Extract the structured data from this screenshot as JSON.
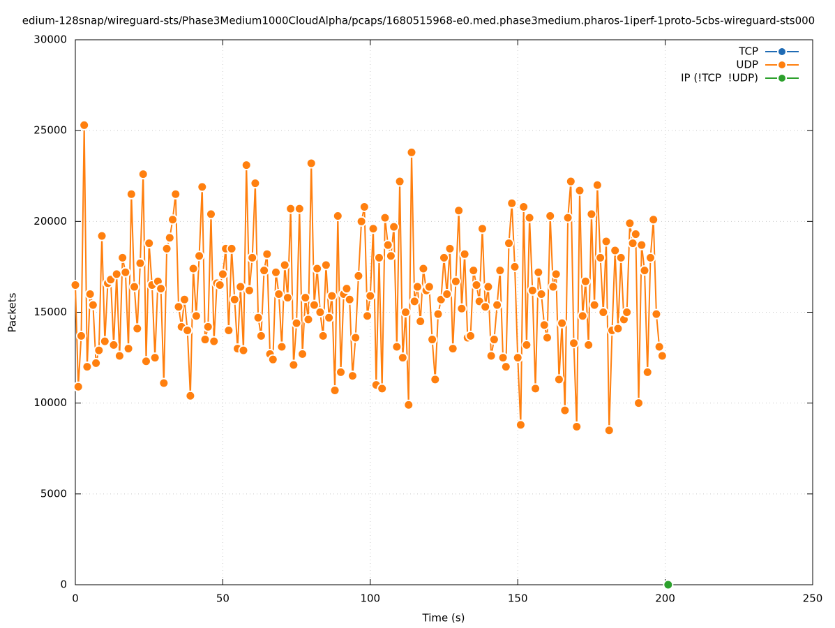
{
  "chart_data": {
    "type": "line",
    "title": "edium-128snap/wireguard-sts/Phase3Medium1000CloudAlpha/pcaps/1680515968-e0.med.phase3medium.pharos-1iperf-1proto-5cbs-wireguard-sts000",
    "x_label": "Time (s)",
    "y_label": "Packets",
    "xlim": [
      0,
      250
    ],
    "xticks": [
      0,
      50,
      100,
      150,
      200,
      250
    ],
    "ylim": [
      0,
      30000
    ],
    "yticks": [
      0,
      5000,
      10000,
      15000,
      20000,
      25000,
      30000
    ],
    "grid": true,
    "legend": "top-right",
    "series": [
      {
        "name": "TCP",
        "color": "#1f6bb4",
        "x": [],
        "values": []
      },
      {
        "name": "UDP",
        "color": "#ff7f0e",
        "x": [
          0,
          1,
          2,
          3,
          4,
          5,
          6,
          7,
          8,
          9,
          10,
          11,
          12,
          13,
          14,
          15,
          16,
          17,
          18,
          19,
          20,
          21,
          22,
          23,
          24,
          25,
          26,
          27,
          28,
          29,
          30,
          31,
          32,
          33,
          34,
          35,
          36,
          37,
          38,
          39,
          40,
          41,
          42,
          43,
          44,
          45,
          46,
          47,
          48,
          49,
          50,
          51,
          52,
          53,
          54,
          55,
          56,
          57,
          58,
          59,
          60,
          61,
          62,
          63,
          64,
          65,
          66,
          67,
          68,
          69,
          70,
          71,
          72,
          73,
          74,
          75,
          76,
          77,
          78,
          79,
          80,
          81,
          82,
          83,
          84,
          85,
          86,
          87,
          88,
          89,
          90,
          91,
          92,
          93,
          94,
          95,
          96,
          97,
          98,
          99,
          100,
          101,
          102,
          103,
          104,
          105,
          106,
          107,
          108,
          109,
          110,
          111,
          112,
          113,
          114,
          115,
          116,
          117,
          118,
          119,
          120,
          121,
          122,
          123,
          124,
          125,
          126,
          127,
          128,
          129,
          130,
          131,
          132,
          133,
          134,
          135,
          136,
          137,
          138,
          139,
          140,
          141,
          142,
          143,
          144,
          145,
          146,
          147,
          148,
          149,
          150,
          151,
          152,
          153,
          154,
          155,
          156,
          157,
          158,
          159,
          160,
          161,
          162,
          163,
          164,
          165,
          166,
          167,
          168,
          169,
          170,
          171,
          172,
          173,
          174,
          175,
          176,
          177,
          178,
          179,
          180,
          181,
          182,
          183,
          184,
          185,
          186,
          187,
          188,
          189,
          190,
          191,
          192,
          193,
          194,
          195,
          196,
          197,
          198,
          199
        ],
        "values": [
          16500,
          10900,
          13700,
          25300,
          12000,
          16000,
          15400,
          12200,
          12900,
          19200,
          13400,
          16600,
          16800,
          13200,
          17100,
          12600,
          18000,
          17200,
          13000,
          21500,
          16400,
          14100,
          17700,
          22600,
          12300,
          18800,
          16500,
          12500,
          16700,
          16300,
          11100,
          18500,
          19100,
          20100,
          21500,
          15300,
          14200,
          15700,
          14000,
          10400,
          17400,
          14800,
          18100,
          21900,
          13500,
          14200,
          20400,
          13400,
          16600,
          16500,
          17100,
          18500,
          14000,
          18500,
          15700,
          13000,
          16400,
          12900,
          23100,
          16200,
          18000,
          22100,
          14700,
          13700,
          17300,
          18200,
          12700,
          12400,
          17200,
          16000,
          13100,
          17600,
          15800,
          20700,
          12100,
          14400,
          20700,
          12700,
          15800,
          14600,
          23200,
          15400,
          17400,
          15000,
          13700,
          17600,
          14700,
          15900,
          10700,
          20300,
          11700,
          16000,
          16300,
          15700,
          11500,
          13600,
          17000,
          20000,
          20800,
          14800,
          15900,
          19600,
          11000,
          18000,
          10800,
          20200,
          18700,
          18100,
          19700,
          13100,
          22200,
          12500,
          15000,
          9900,
          23800,
          15600,
          16400,
          14500,
          17400,
          16200,
          16400,
          13500,
          11300,
          14900,
          15700,
          18000,
          16000,
          18500,
          13000,
          16700,
          20600,
          15200,
          18200,
          13600,
          13700,
          17300,
          16500,
          15600,
          19600,
          15300,
          16400,
          12600,
          13500,
          15400,
          17300,
          12500,
          12000,
          18800,
          21000,
          17500,
          12500,
          8800,
          20800,
          13200,
          20200,
          16200,
          10800,
          17200,
          16000,
          14300,
          13600,
          20300,
          16400,
          17100,
          11300,
          14400,
          9600,
          20200,
          22200,
          13300,
          8700,
          21700,
          14800,
          16700,
          13200,
          20400,
          15400,
          22000,
          18000,
          15000,
          18900,
          8500,
          14000,
          18400,
          14100,
          18000,
          14600,
          15000,
          19900,
          18800,
          19300,
          10000,
          18700,
          17300,
          11700,
          18000,
          20100,
          14900,
          13100,
          12600
        ]
      },
      {
        "name": "IP (!TCP  !UDP)",
        "color": "#2ca02c",
        "x": [
          201
        ],
        "values": [
          0
        ]
      }
    ]
  }
}
